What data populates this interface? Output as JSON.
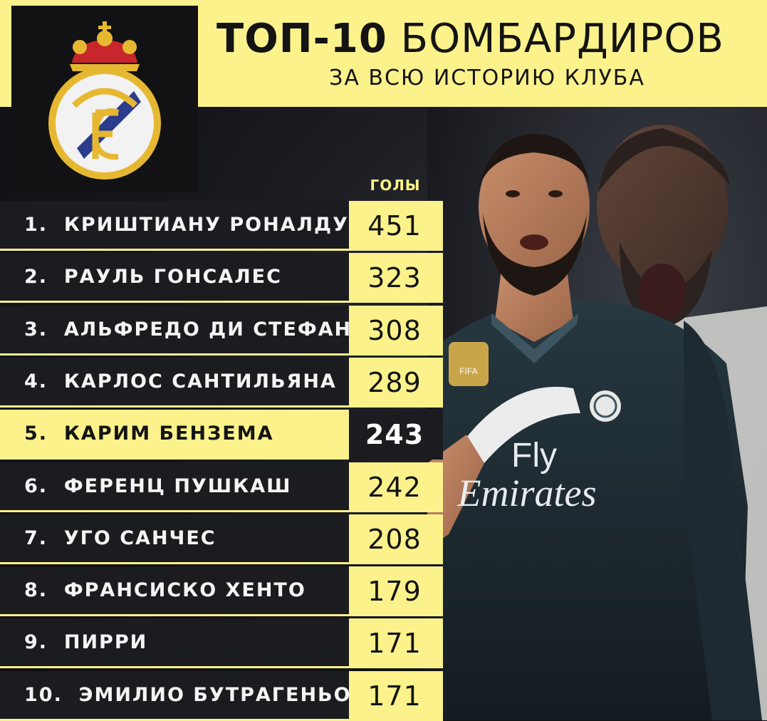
{
  "header": {
    "title_bold": "ТОП-10",
    "title_rest": "БОМБАРДИРОВ",
    "subtitle": "ЗА ВСЮ ИСТОРИЮ КЛУБА"
  },
  "table": {
    "goals_header": "ГОЛЫ",
    "rows": [
      {
        "rank": "1.",
        "name": "КРИШТИАНУ РОНАЛДУ",
        "goals": "451"
      },
      {
        "rank": "2.",
        "name": "РАУЛЬ ГОНСАЛЕС",
        "goals": "323"
      },
      {
        "rank": "3.",
        "name": "АЛЬФРЕДО ДИ СТЕФАНО",
        "goals": "308"
      },
      {
        "rank": "4.",
        "name": "КАРЛОС САНТИЛЬЯНА",
        "goals": "289"
      },
      {
        "rank": "5.",
        "name": "КАРИМ БЕНЗЕМА",
        "goals": "243"
      },
      {
        "rank": "6.",
        "name": "ФЕРЕНЦ ПУШКАШ",
        "goals": "242"
      },
      {
        "rank": "7.",
        "name": "УГО САНЧЕС",
        "goals": "208"
      },
      {
        "rank": "8.",
        "name": "ФРАНСИСКО ХЕНТО",
        "goals": "179"
      },
      {
        "rank": "9.",
        "name": "ПИРРИ",
        "goals": "171"
      },
      {
        "rank": "10.",
        "name": "ЭМИЛИО БУТРАГЕНЬО",
        "goals": "171"
      }
    ],
    "highlighted_index": 4
  },
  "photo": {
    "jersey_text_line1": "Fly",
    "jersey_text_line2": "Emirates",
    "badge_text": "FIFA"
  },
  "colors": {
    "accent_yellow": "#fbf28c",
    "dark_row": "#1b1c20",
    "background": "#111114"
  },
  "icons": {
    "logo": "real-madrid-crest-icon"
  }
}
